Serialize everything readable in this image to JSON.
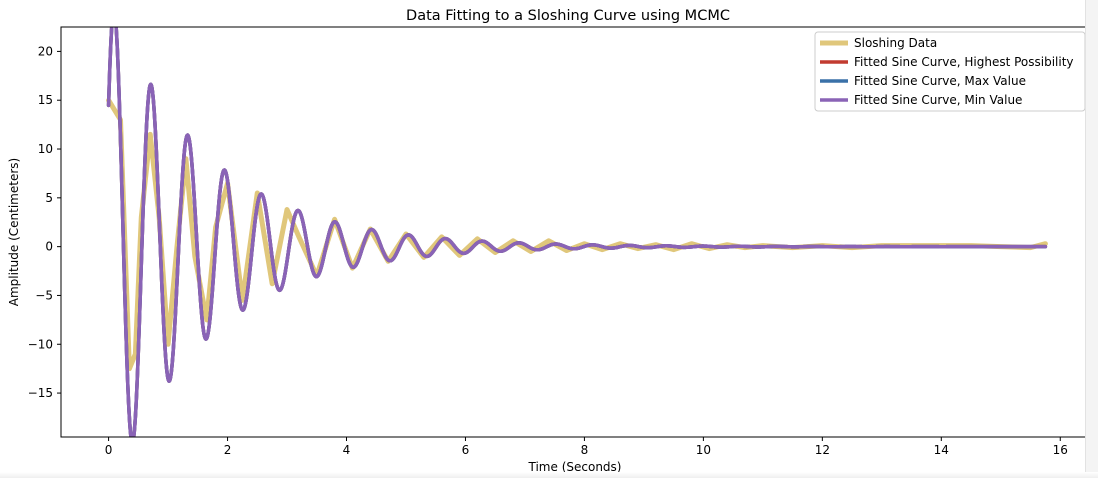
{
  "chart_data": {
    "type": "line",
    "title": "Data Fitting to a Sloshing Curve using MCMC",
    "xlabel": "Time (Seconds)",
    "ylabel": "Amplitude (Centimeters)",
    "xlim": [
      -0.8,
      16.5
    ],
    "ylim": [
      -19.5,
      22.5
    ],
    "xticks": [
      0,
      2,
      4,
      6,
      8,
      10,
      12,
      14,
      16
    ],
    "yticks": [
      -15,
      -10,
      -5,
      0,
      5,
      10,
      15,
      20
    ],
    "grid": false,
    "legend_position": "top-right",
    "series": [
      {
        "name": "Sloshing Data",
        "color": "#e0c77b",
        "x": [
          0,
          0.1,
          0.2,
          0.35,
          0.45,
          0.55,
          0.7,
          0.85,
          1.0,
          1.15,
          1.3,
          1.45,
          1.65,
          1.8,
          2.0,
          2.25,
          2.5,
          2.75,
          3.0,
          3.2,
          3.5,
          3.8,
          4.1,
          4.4,
          4.7,
          5.0,
          5.3,
          5.6,
          5.9,
          6.2,
          6.5,
          6.8,
          7.1,
          7.4,
          7.7,
          8.0,
          8.3,
          8.6,
          8.9,
          9.2,
          9.5,
          9.8,
          10.1,
          10.4,
          10.7,
          11.0,
          11.5,
          12.0,
          12.5,
          13.0,
          13.5,
          14.0,
          14.5,
          15.0,
          15.5,
          15.75
        ],
        "y": [
          15,
          14,
          13,
          -12.5,
          -11,
          3,
          11.5,
          3,
          -10,
          0,
          9,
          -1,
          -7.5,
          2,
          6.5,
          -5.5,
          5.5,
          -3.8,
          3.8,
          1,
          -3,
          2.8,
          -2.2,
          1.8,
          -1.5,
          1.3,
          -1.1,
          1.0,
          -0.9,
          0.8,
          -0.6,
          0.6,
          -0.5,
          0.6,
          -0.4,
          0.3,
          -0.3,
          0.3,
          -0.2,
          0.2,
          -0.3,
          0.3,
          -0.2,
          0.2,
          -0.1,
          0.1,
          -0.1,
          0.1,
          -0.1,
          0.1,
          0.1,
          0.1,
          0.1,
          0.0,
          -0.1,
          0.3
        ]
      },
      {
        "name": "Fitted Sine Curve, Highest Possibility",
        "color": "#c23b30",
        "model": {
          "equation": "y = A * exp(-x / tau) * cos(omega * x + phi)",
          "A": 25.6,
          "tau": 1.65,
          "omega": 10.15,
          "phi": -0.97,
          "x_start": 0,
          "x_end": 15.75
        }
      },
      {
        "name": "Fitted Sine Curve, Max Value",
        "color": "#3a71a8",
        "model": {
          "equation": "y = A * exp(-x / tau) * cos(omega * x + phi)",
          "A": 25.6,
          "tau": 1.65,
          "omega": 10.15,
          "phi": -0.97,
          "x_start": 0,
          "x_end": 15.75
        }
      },
      {
        "name": "Fitted Sine Curve, Min Value",
        "color": "#8a63b6",
        "model": {
          "equation": "y = A * exp(-x / tau) * cos(omega * x + phi)",
          "A": 25.6,
          "tau": 1.65,
          "omega": 10.15,
          "phi": -0.97,
          "x_start": 0,
          "x_end": 15.75
        }
      }
    ]
  }
}
